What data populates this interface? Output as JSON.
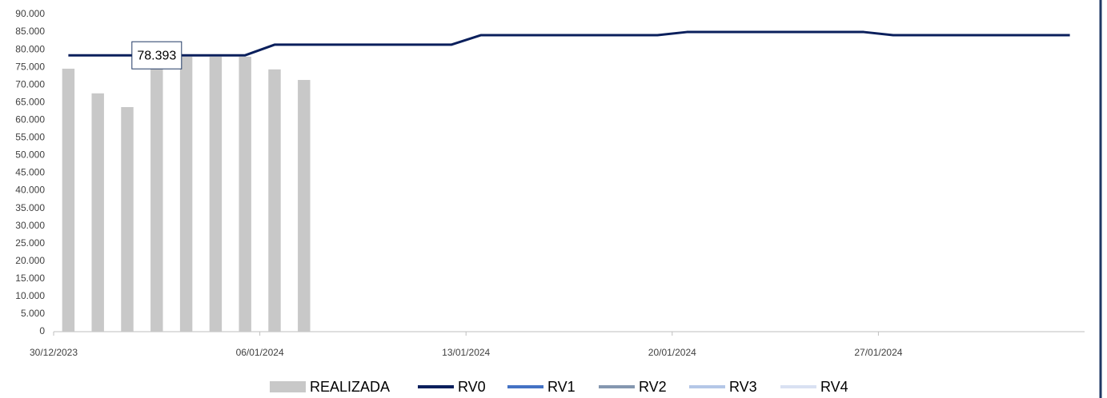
{
  "chart_data": {
    "type": "bar_line",
    "categories": [
      "30/12/2023",
      null,
      null,
      null,
      null,
      null,
      null,
      "06/01/2024",
      null,
      null,
      null,
      null,
      null,
      null,
      "13/01/2024",
      null,
      null,
      null,
      null,
      null,
      null,
      "20/01/2024",
      null,
      null,
      null,
      null,
      null,
      null,
      "27/01/2024",
      null,
      null,
      null,
      null,
      null,
      null
    ],
    "series": [
      {
        "name": "REALIZADA",
        "type": "bar",
        "color": "#c8c8c8",
        "values": [
          74600,
          67600,
          63700,
          74500,
          78000,
          78000,
          78000,
          74400,
          71400,
          null,
          null,
          null,
          null,
          null,
          null,
          null,
          null,
          null,
          null,
          null,
          null,
          null,
          null,
          null,
          null,
          null,
          null,
          null,
          null,
          null,
          null,
          null,
          null,
          null,
          null
        ]
      },
      {
        "name": "RV0",
        "type": "line",
        "color": "#0a1f5c",
        "values": [
          78393,
          78393,
          78393,
          78393,
          78393,
          78393,
          78393,
          81400,
          81400,
          81400,
          81400,
          81400,
          81400,
          81400,
          84100,
          84100,
          84100,
          84100,
          84100,
          84100,
          84100,
          85000,
          85000,
          85000,
          85000,
          85000,
          85000,
          85000,
          84100,
          84100,
          84100,
          84100,
          84100,
          84100,
          84100
        ],
        "value_labels": [
          null,
          null,
          null,
          "78.393",
          null,
          null,
          null,
          null,
          null,
          null,
          null,
          null,
          null,
          null,
          null,
          null,
          null,
          null,
          null,
          null,
          null,
          null,
          null,
          null,
          null,
          null,
          null,
          null,
          null,
          null,
          null,
          null,
          null,
          null,
          null
        ]
      },
      {
        "name": "RV1",
        "type": "line",
        "color": "#4472c4",
        "values": [
          null,
          null,
          null,
          null,
          null,
          null,
          null,
          null,
          null,
          null,
          null,
          null,
          null,
          null,
          null,
          null,
          null,
          null,
          null,
          null,
          null,
          null,
          null,
          null,
          null,
          null,
          null,
          null,
          null,
          null,
          null,
          null,
          null,
          null,
          null
        ]
      },
      {
        "name": "RV2",
        "type": "line",
        "color": "#8497b0",
        "values": [
          null,
          null,
          null,
          null,
          null,
          null,
          null,
          null,
          null,
          null,
          null,
          null,
          null,
          null,
          null,
          null,
          null,
          null,
          null,
          null,
          null,
          null,
          null,
          null,
          null,
          null,
          null,
          null,
          null,
          null,
          null,
          null,
          null,
          null,
          null
        ]
      },
      {
        "name": "RV3",
        "type": "line",
        "color": "#b4c7e7",
        "values": [
          null,
          null,
          null,
          null,
          null,
          null,
          null,
          null,
          null,
          null,
          null,
          null,
          null,
          null,
          null,
          null,
          null,
          null,
          null,
          null,
          null,
          null,
          null,
          null,
          null,
          null,
          null,
          null,
          null,
          null,
          null,
          null,
          null,
          null,
          null
        ]
      },
      {
        "name": "RV4",
        "type": "line",
        "color": "#d9e1f2",
        "values": [
          null,
          null,
          null,
          null,
          null,
          null,
          null,
          null,
          null,
          null,
          null,
          null,
          null,
          null,
          null,
          null,
          null,
          null,
          null,
          null,
          null,
          null,
          null,
          null,
          null,
          null,
          null,
          null,
          null,
          null,
          null,
          null,
          null,
          null,
          null
        ]
      }
    ],
    "ylim": [
      0,
      90000
    ],
    "yticks": [
      0,
      {
        "value": 5000,
        "label": "5.000"
      },
      {
        "value": 10000,
        "label": "10.000"
      },
      {
        "value": 15000,
        "label": "15.000"
      },
      {
        "value": 20000,
        "label": "20.000"
      },
      {
        "value": 25000,
        "label": "25.000"
      },
      {
        "value": 30000,
        "label": "30.000"
      },
      {
        "value": 35000,
        "label": "35.000"
      },
      {
        "value": 40000,
        "label": "40.000"
      },
      {
        "value": 45000,
        "label": "45.000"
      },
      {
        "value": 50000,
        "label": "50.000"
      },
      {
        "value": 55000,
        "label": "55.000"
      },
      {
        "value": 60000,
        "label": "60.000"
      },
      {
        "value": 65000,
        "label": "65.000"
      },
      {
        "value": 70000,
        "label": "70.000"
      },
      {
        "value": 75000,
        "label": "75.000"
      },
      {
        "value": 80000,
        "label": "80.000"
      },
      {
        "value": 85000,
        "label": "85.000"
      },
      {
        "value": 90000,
        "label": "90.000"
      }
    ],
    "grid": false,
    "legend": "bottom"
  }
}
